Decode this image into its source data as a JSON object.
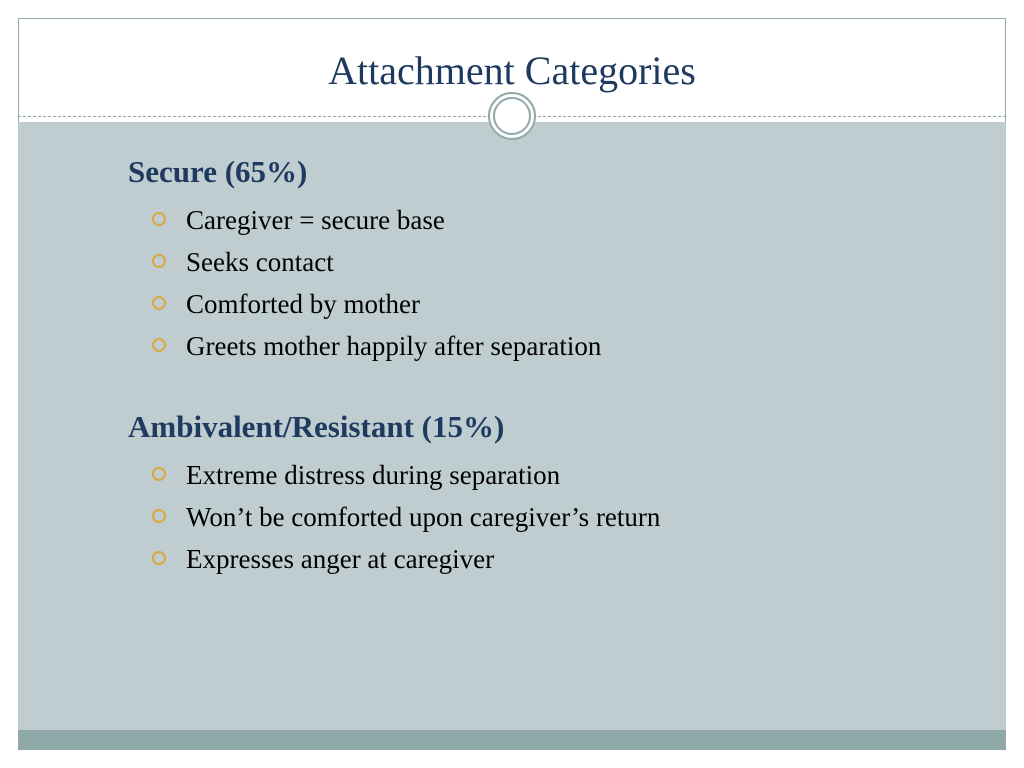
{
  "slide": {
    "title": "Attachment Categories",
    "background_color": "#ffffff",
    "content_background": "#bfcdd1",
    "border_color": "#8fa8a8",
    "bottom_bar_color": "#8fa8a8",
    "title_color": "#1f3a5f",
    "heading_color": "#1f3a5f",
    "body_text_color": "#000000",
    "bullet_color": "#d9a93d",
    "title_fontsize": 40,
    "heading_fontsize": 31,
    "body_fontsize": 27,
    "categories": [
      {
        "heading": "Secure (65%)",
        "items": [
          "Caregiver = secure base",
          "Seeks contact",
          "Comforted by mother",
          "Greets mother happily after separation"
        ]
      },
      {
        "heading": "Ambivalent/Resistant (15%)",
        "items": [
          "Extreme distress during separation",
          "Won’t be comforted upon caregiver’s return",
          "Expresses anger at caregiver"
        ]
      }
    ]
  }
}
